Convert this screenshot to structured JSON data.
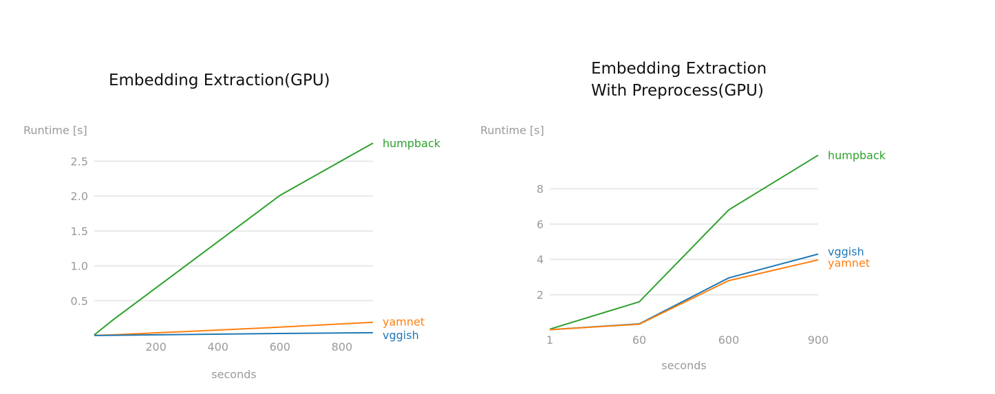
{
  "colors": {
    "humpback": "#2ca02c",
    "yamnet": "#ff7f0e",
    "vggish": "#1f77b4",
    "axis_text": "#9a9a9a",
    "grid": "#e8e8e8"
  },
  "chart_data": [
    {
      "type": "line",
      "title": "Embedding Extraction(GPU)",
      "xlabel": "seconds",
      "ylabel": "Runtime [s]",
      "xlim": [
        1,
        900
      ],
      "ylim": [
        0,
        2.8
      ],
      "xticks": [
        200,
        400,
        600,
        800
      ],
      "yticks": [
        0.5,
        1.0,
        1.5,
        2.0,
        2.5
      ],
      "grid": "horizontal",
      "legend": "line-end labels",
      "series": [
        {
          "name": "humpback",
          "x": [
            1,
            60,
            600,
            900
          ],
          "y": [
            0.01,
            0.22,
            2.01,
            2.76
          ]
        },
        {
          "name": "yamnet",
          "x": [
            1,
            60,
            600,
            900
          ],
          "y": [
            0.002,
            0.01,
            0.12,
            0.19
          ]
        },
        {
          "name": "vggish",
          "x": [
            1,
            60,
            600,
            900
          ],
          "y": [
            0.001,
            0.004,
            0.03,
            0.04
          ]
        }
      ]
    },
    {
      "type": "line",
      "title": "Embedding Extraction\nWith Preprocess(GPU)",
      "xlabel": "seconds",
      "ylabel": "Runtime [s]",
      "categories": [
        "1",
        "60",
        "600",
        "900"
      ],
      "ylim": [
        0,
        10
      ],
      "yticks": [
        2,
        4,
        6,
        8
      ],
      "grid": "horizontal",
      "legend": "line-end labels",
      "series": [
        {
          "name": "humpback",
          "values": [
            0.05,
            1.6,
            6.8,
            9.9
          ]
        },
        {
          "name": "vggish",
          "values": [
            0.02,
            0.35,
            2.95,
            4.3
          ]
        },
        {
          "name": "yamnet",
          "values": [
            0.02,
            0.33,
            2.8,
            3.97
          ]
        }
      ]
    }
  ]
}
